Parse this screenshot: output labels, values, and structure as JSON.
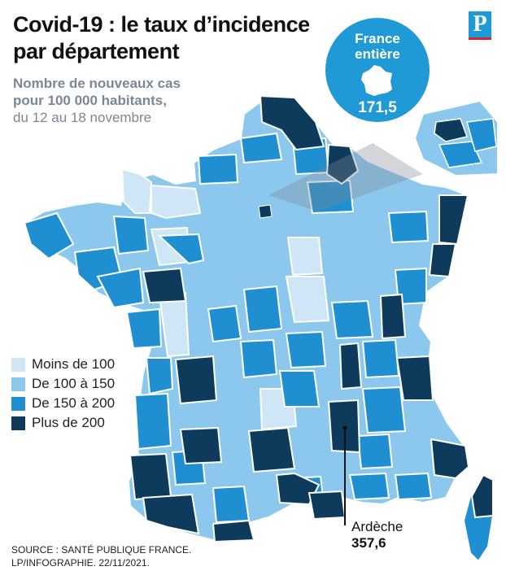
{
  "title_line1": "Covid-19 : le taux d’incidence",
  "title_line2": "par département",
  "subtitle_line1": "Nombre de nouveaux cas",
  "subtitle_line2": "pour 100 000 habitants,",
  "subtitle_line3": "du 12 au 18 novembre",
  "logo_letter": "P",
  "national": {
    "label_line1": "France",
    "label_line2": "entière",
    "value": "171,5"
  },
  "legend": [
    {
      "label": "Moins de 100",
      "color": "#cfe6f7"
    },
    {
      "label": "De 100 à 150",
      "color": "#8cc8ee"
    },
    {
      "label": "De 150 à 200",
      "color": "#1f8fd2"
    },
    {
      "label": "Plus de 200",
      "color": "#0e3a5c"
    }
  ],
  "callout": {
    "name": "Ardèche",
    "value": "357,6"
  },
  "source_line1": "SOURCE : SANTÉ PUBLIQUE FRANCE.",
  "source_line2": "LP/INFOGRAPHIE.  22/11/2021.",
  "colors": {
    "light": "#cfe6f7",
    "mid_light": "#8cc8ee",
    "mid": "#1f8fd2",
    "dark": "#0e3a5c",
    "border": "#ffffff"
  }
}
